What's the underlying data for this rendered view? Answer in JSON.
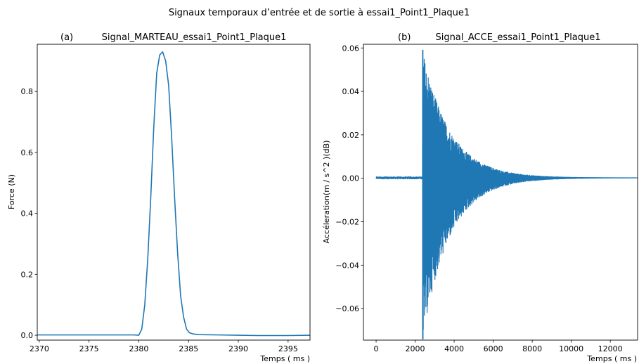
{
  "figure": {
    "suptitle": "Signaux temporaux d’entrée et de sortie à essai1_Point1_Plaque1"
  },
  "chart_data": [
    {
      "type": "line",
      "panel_label": "(a)",
      "title": "Signal_MARTEAU_essai1_Point1_Plaque1",
      "xlabel": "Temps ( ms )",
      "ylabel": "Force (N)",
      "xlim": [
        2369.8,
        2397.2
      ],
      "ylim": [
        -0.016,
        0.955
      ],
      "xticks": [
        2370,
        2375,
        2380,
        2385,
        2390,
        2395
      ],
      "xtick_labels": [
        "2370",
        "2375",
        "2380",
        "2385",
        "2390",
        "2395"
      ],
      "yticks": [
        0.0,
        0.2,
        0.4,
        0.6,
        0.8
      ],
      "ytick_labels": [
        "0.0",
        "0.2",
        "0.4",
        "0.6",
        "0.8"
      ],
      "color": "#1f77b4",
      "series": [
        {
          "x": [
            2369.8,
            2379.5,
            2380.0,
            2380.3,
            2380.6,
            2380.9,
            2381.2,
            2381.5,
            2381.8,
            2382.1,
            2382.4,
            2382.7,
            2383.0,
            2383.3,
            2383.6,
            2383.9,
            2384.2,
            2384.5,
            2384.8,
            2385.1,
            2385.5,
            2386.0,
            2388.0,
            2390.0,
            2392.0,
            2395.0,
            2397.2
          ],
          "y": [
            0.001,
            0.001,
            0.0,
            0.02,
            0.1,
            0.25,
            0.45,
            0.68,
            0.86,
            0.92,
            0.93,
            0.9,
            0.82,
            0.65,
            0.45,
            0.27,
            0.13,
            0.06,
            0.02,
            0.008,
            0.004,
            0.002,
            0.001,
            0.0,
            -0.001,
            -0.001,
            0.0
          ]
        }
      ]
    },
    {
      "type": "line",
      "panel_label": "(b)",
      "title": "Signal_ACCE_essai1_Point1_Plaque1",
      "xlabel": "Temps ( ms )",
      "ylabel": "Accéleration(m / s^2 )(dB)",
      "xlim": [
        -650,
        13400
      ],
      "ylim": [
        -0.0745,
        0.0617
      ],
      "xticks": [
        0,
        2000,
        4000,
        6000,
        8000,
        10000,
        12000
      ],
      "xtick_labels": [
        "0",
        "2000",
        "4000",
        "6000",
        "8000",
        "10000",
        "12000"
      ],
      "yticks": [
        -0.06,
        -0.04,
        -0.02,
        0.0,
        0.02,
        0.04,
        0.06
      ],
      "ytick_labels": [
        "−0.06",
        "−0.04",
        "−0.02",
        "0.00",
        "0.02",
        "0.04",
        "0.06"
      ],
      "color": "#1f77b4",
      "signal": {
        "t_start": 0,
        "t_impact": 2380,
        "t_end": 13400,
        "pre_noise_amplitude": 0.0005,
        "positive_peak": 0.059,
        "negative_peak": -0.074,
        "decay_time_ms": 1400
      }
    }
  ]
}
